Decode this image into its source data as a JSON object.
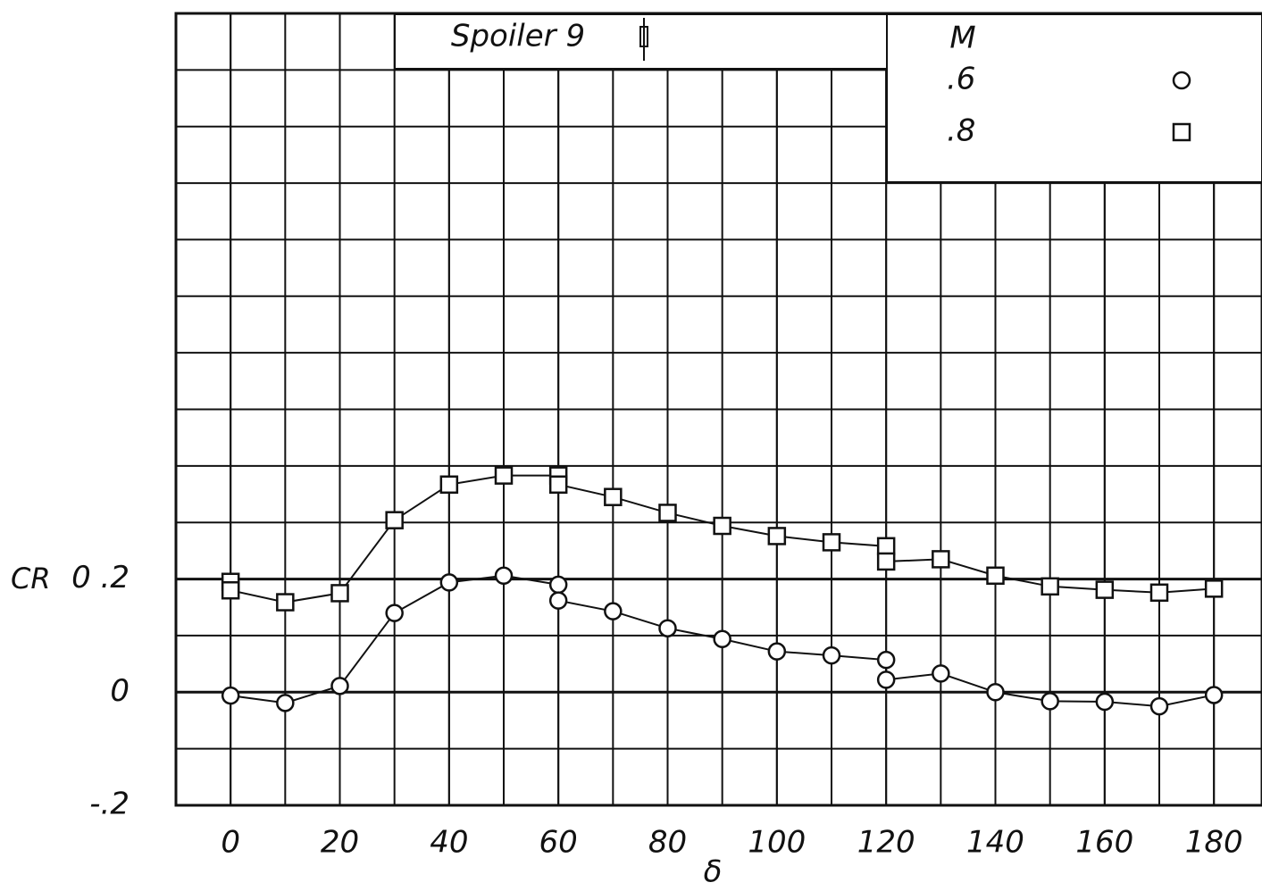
{
  "chart_data": {
    "type": "scatter",
    "title": "Spoiler 9",
    "xlabel": "δ",
    "ylabel": "CR",
    "xlim": [
      -10,
      188.8
    ],
    "ylim": [
      -0.2,
      1.2
    ],
    "xticks": [
      0,
      20,
      40,
      60,
      80,
      100,
      120,
      140,
      160,
      180
    ],
    "yticks": [
      {
        "value": -0.2,
        "label": "-.2"
      },
      0,
      {
        "value": 0.2,
        "label": "0 .2"
      }
    ],
    "grid": true,
    "legend_title": "M",
    "legend": "upper right",
    "series": [
      {
        "name": ".6",
        "marker": "circle",
        "color": "#111",
        "x": [
          0,
          10,
          20,
          30,
          40,
          50,
          60,
          60,
          70,
          80,
          90,
          100,
          110,
          120,
          120,
          130,
          140,
          150,
          160,
          170,
          180
        ],
        "values": [
          -0.006,
          -0.019,
          0.011,
          0.14,
          0.194,
          0.206,
          0.19,
          0.162,
          0.143,
          0.113,
          0.094,
          0.072,
          0.065,
          0.057,
          0.022,
          0.033,
          0,
          -0.016,
          -0.017,
          -0.025,
          -0.005
        ]
      },
      {
        "name": ".8",
        "marker": "square",
        "color": "#111",
        "x": [
          0,
          0,
          10,
          20,
          30,
          40,
          50,
          60,
          60,
          70,
          80,
          90,
          100,
          110,
          120,
          120,
          130,
          140,
          150,
          160,
          170,
          180
        ],
        "values": [
          0.195,
          0.18,
          0.159,
          0.175,
          0.304,
          0.367,
          0.383,
          0.383,
          0.367,
          0.345,
          0.317,
          0.294,
          0.276,
          0.265,
          0.258,
          0.231,
          0.235,
          0.206,
          0.187,
          0.181,
          0.176,
          0.183
        ]
      }
    ]
  }
}
